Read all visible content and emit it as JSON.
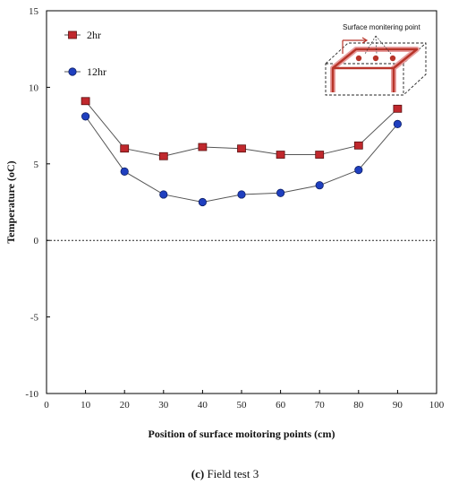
{
  "chart_data": {
    "type": "line",
    "title": "",
    "xlabel": "Position of surface moitoring points (cm)",
    "ylabel": "Temperature  (oC)",
    "xlim": [
      0,
      100
    ],
    "ylim": [
      -10,
      15
    ],
    "xticks": [
      0,
      10,
      20,
      30,
      40,
      50,
      60,
      70,
      80,
      90,
      100
    ],
    "yticks": [
      -10,
      -5,
      0,
      5,
      10,
      15
    ],
    "x": [
      10,
      20,
      30,
      40,
      50,
      60,
      70,
      80,
      90
    ],
    "series": [
      {
        "name": "2hr",
        "marker": "square",
        "color": "#c0282d",
        "values": [
          9.1,
          6.0,
          5.5,
          6.1,
          6.0,
          5.6,
          5.6,
          6.2,
          8.6
        ]
      },
      {
        "name": "12hr",
        "marker": "circle",
        "color": "#1f3fbf",
        "values": [
          8.1,
          4.5,
          3.0,
          2.5,
          3.0,
          3.1,
          3.6,
          4.6,
          7.6
        ]
      }
    ],
    "reference_line": {
      "y": 0,
      "style": "dotted"
    },
    "legend_position": "top-left",
    "grid": false,
    "inset": {
      "label": "Surface monitering point"
    }
  },
  "caption": {
    "letter": "(c)",
    "text": " Field test 3"
  }
}
